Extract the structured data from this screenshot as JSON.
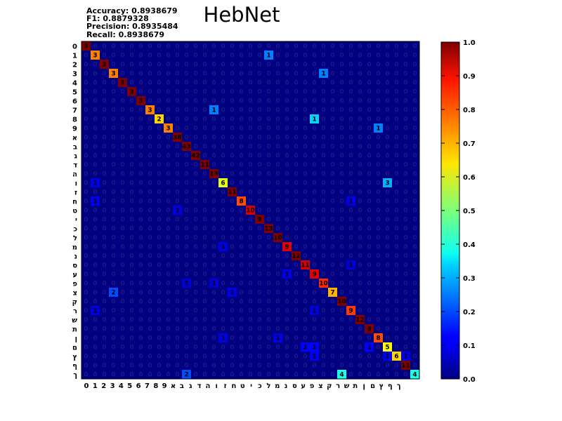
{
  "metrics": {
    "accuracy": "Accuracy: 0.8938679",
    "f1": "F1: 0.8879328",
    "precision": "Precision: 0.8935484",
    "recall": "Recall: 0.8938679"
  },
  "chart_data": {
    "type": "heatmap",
    "title": "HebNet",
    "xlabel": "",
    "ylabel": "",
    "labels": [
      "0",
      "1",
      "2",
      "3",
      "4",
      "5",
      "6",
      "7",
      "8",
      "9",
      "א",
      "ב",
      "ג",
      "ד",
      "ה",
      "ו",
      "ז",
      "ח",
      "ט",
      "י",
      "כ",
      "ל",
      "מ",
      "נ",
      "ס",
      "ע",
      "פ",
      "צ",
      "ק",
      "ר",
      "ש",
      "ת",
      "ן",
      "ם",
      "ץ",
      "ף",
      "ך"
    ],
    "diagonal": [
      3,
      3,
      3,
      3,
      3,
      3,
      3,
      3,
      2,
      3,
      38,
      43,
      42,
      11,
      13,
      6,
      11,
      8,
      10,
      9,
      13,
      10,
      9,
      12,
      11,
      9,
      10,
      7,
      10,
      9,
      12,
      8,
      8,
      5,
      6,
      11,
      4
    ],
    "off_diagonal": [
      {
        "row": "1",
        "col": "כ",
        "value": 1
      },
      {
        "row": "3",
        "col": "פ",
        "value": 1
      },
      {
        "row": "7",
        "col": "ה",
        "value": 1
      },
      {
        "row": "8",
        "col": "ע",
        "value": 1
      },
      {
        "row": "9",
        "col": "ן",
        "value": 1
      },
      {
        "row": "ו",
        "col": "1",
        "value": 1
      },
      {
        "row": "ו",
        "col": "ם",
        "value": 3
      },
      {
        "row": "ח",
        "col": "1",
        "value": 1
      },
      {
        "row": "ח",
        "col": "ר",
        "value": 1
      },
      {
        "row": "ט",
        "col": "א",
        "value": 1
      },
      {
        "row": "מ",
        "col": "ו",
        "value": 1
      },
      {
        "row": "ס",
        "col": "ר",
        "value": 1
      },
      {
        "row": "ע",
        "col": "מ",
        "value": 1
      },
      {
        "row": "פ",
        "col": "ב",
        "value": 1
      },
      {
        "row": "פ",
        "col": "ה",
        "value": 1
      },
      {
        "row": "צ",
        "col": "3",
        "value": 2
      },
      {
        "row": "צ",
        "col": "ז",
        "value": 1
      },
      {
        "row": "ר",
        "col": "1",
        "value": 1
      },
      {
        "row": "ר",
        "col": "ע",
        "value": 1
      },
      {
        "row": "ן",
        "col": "ל",
        "value": 1
      },
      {
        "row": "ן",
        "col": "ו",
        "value": 1
      },
      {
        "row": "ם",
        "col": "ס",
        "value": 1
      },
      {
        "row": "ם",
        "col": "ע",
        "value": 1
      },
      {
        "row": "ם",
        "col": "ת",
        "value": 1
      },
      {
        "row": "ץ",
        "col": "ם",
        "value": 1
      },
      {
        "row": "ץ",
        "col": "ע",
        "value": 1
      },
      {
        "row": "ץ",
        "col": "ם",
        "value": 1
      },
      {
        "row": "ץ",
        "col": "ף",
        "value": 1
      },
      {
        "row": "ך",
        "col": "ב",
        "value": 2
      },
      {
        "row": "ך",
        "col": "ק",
        "value": 4
      }
    ],
    "colorbar": {
      "colormap": "jet",
      "range": [
        0.0,
        1.0
      ],
      "ticks": [
        "0.0",
        "0.1",
        "0.2",
        "0.3",
        "0.4",
        "0.5",
        "0.6",
        "0.7",
        "0.8",
        "0.9",
        "1.0"
      ]
    },
    "zero_cell_text": "0"
  }
}
